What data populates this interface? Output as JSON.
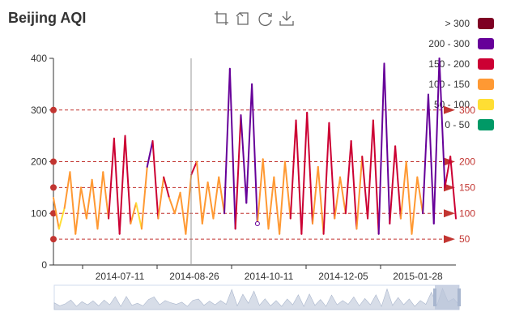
{
  "chart_data": {
    "type": "line",
    "title": "Beijing AQI",
    "xlabel": "",
    "ylabel": "",
    "ylim": [
      0,
      400
    ],
    "yticks": [
      0,
      100,
      200,
      300,
      400
    ],
    "x_tick_labels": [
      "2014-07-11",
      "2014-08-26",
      "2014-10-11",
      "2014-12-05",
      "2015-01-28"
    ],
    "x_range": [
      "2014-06-01",
      "2015-03-20"
    ],
    "grid": false,
    "legend_position": "top-right",
    "toolbox": [
      "restore",
      "zoom",
      "undo-zoom",
      "save-as-image"
    ],
    "pieces": [
      {
        "label": "> 300",
        "min": 300,
        "max": 1000,
        "color": "#7e0023"
      },
      {
        "label": "200 - 300",
        "min": 200,
        "max": 300,
        "color": "#660099"
      },
      {
        "label": "150 - 200",
        "min": 150,
        "max": 200,
        "color": "#cc0033"
      },
      {
        "label": "100 - 150",
        "min": 100,
        "max": 150,
        "color": "#ff9933"
      },
      {
        "label": "50 - 100",
        "min": 50,
        "max": 100,
        "color": "#ffde33"
      },
      {
        "label": "0 - 50",
        "min": 0,
        "max": 50,
        "color": "#096"
      }
    ],
    "mark_lines": [
      50,
      100,
      150,
      200,
      300
    ],
    "mark_points": [
      50,
      100,
      150,
      200,
      300
    ],
    "mark_line_color": "#c23531",
    "axis_color": "#333333",
    "series": [
      {
        "dates": [
          "2014-06-01",
          "2014-06-05",
          "2014-06-09",
          "2014-06-13",
          "2014-06-17",
          "2014-06-21",
          "2014-06-25",
          "2014-06-29",
          "2014-07-03",
          "2014-07-07",
          "2014-07-11",
          "2014-07-15",
          "2014-07-19",
          "2014-07-23",
          "2014-07-27",
          "2014-07-31",
          "2014-08-04",
          "2014-08-08",
          "2014-08-12",
          "2014-08-16",
          "2014-08-20",
          "2014-08-24",
          "2014-08-28",
          "2014-09-01",
          "2014-09-05",
          "2014-09-09",
          "2014-09-13",
          "2014-09-17",
          "2014-09-21",
          "2014-09-25",
          "2014-09-29",
          "2014-10-03",
          "2014-10-07",
          "2014-10-11",
          "2014-10-15",
          "2014-10-19",
          "2014-10-23",
          "2014-10-27",
          "2014-10-31",
          "2014-11-04",
          "2014-11-08",
          "2014-11-12",
          "2014-11-16",
          "2014-11-20",
          "2014-11-24",
          "2014-11-28",
          "2014-12-02",
          "2014-12-06",
          "2014-12-10",
          "2014-12-14",
          "2014-12-18",
          "2014-12-22",
          "2014-12-26",
          "2014-12-30",
          "2015-01-03",
          "2015-01-07",
          "2015-01-11",
          "2015-01-15",
          "2015-01-19",
          "2015-01-23",
          "2015-01-27",
          "2015-01-31",
          "2015-02-04",
          "2015-02-08",
          "2015-02-12",
          "2015-02-16",
          "2015-02-20",
          "2015-02-24",
          "2015-02-28",
          "2015-03-04",
          "2015-03-08",
          "2015-03-12",
          "2015-03-16",
          "2015-03-20"
        ],
        "values": [
          130,
          70,
          110,
          180,
          60,
          150,
          90,
          165,
          70,
          180,
          90,
          245,
          60,
          250,
          80,
          120,
          70,
          190,
          240,
          90,
          170,
          130,
          100,
          140,
          60,
          175,
          200,
          80,
          160,
          90,
          170,
          100,
          380,
          70,
          290,
          120,
          350,
          80,
          205,
          70,
          170,
          60,
          200,
          90,
          280,
          60,
          295,
          80,
          190,
          60,
          275,
          90,
          170,
          100,
          240,
          70,
          210,
          90,
          280,
          60,
          390,
          80,
          230,
          90,
          200,
          60,
          170,
          100,
          330,
          80,
          400,
          150,
          210,
          90
        ]
      }
    ]
  }
}
